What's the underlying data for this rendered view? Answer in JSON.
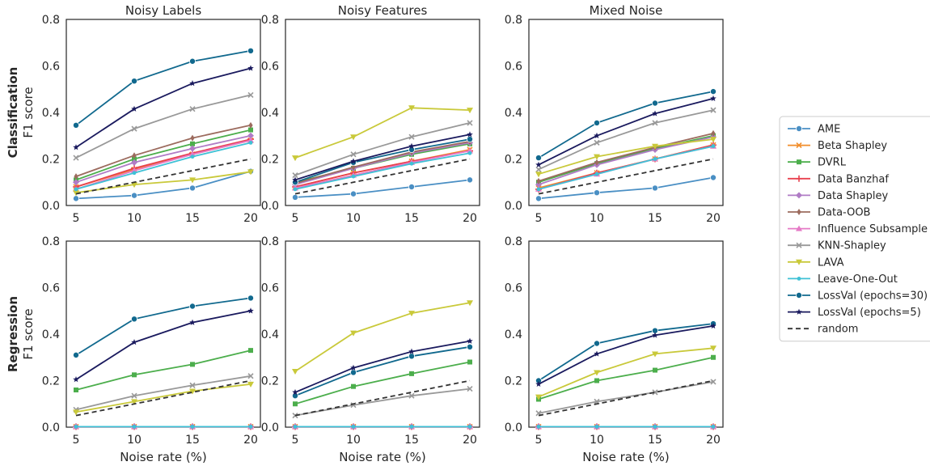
{
  "chart_data": {
    "type": "line",
    "x": [
      5,
      10,
      15,
      20
    ],
    "xlabel": "Noise rate (%)",
    "ylim": [
      0,
      0.8
    ],
    "yticks": [
      "0.0",
      "0.2",
      "0.4",
      "0.6",
      "0.8"
    ],
    "xticks": [
      "5",
      "10",
      "15",
      "20"
    ],
    "grid": false,
    "legend_position": "right",
    "column_titles": [
      "Noisy Labels",
      "Noisy Features",
      "Mixed Noise"
    ],
    "row_labels": [
      {
        "bold": "Classification",
        "metric": "F1 score"
      },
      {
        "bold": "Regression",
        "metric": "F1 score"
      }
    ],
    "legend": [
      {
        "name": "AME",
        "color": "#4a8fc4",
        "marker": "circle",
        "dash": ""
      },
      {
        "name": "Beta Shapley",
        "color": "#f28e2b",
        "marker": "x",
        "dash": ""
      },
      {
        "name": "DVRL",
        "color": "#4cae4c",
        "marker": "square",
        "dash": ""
      },
      {
        "name": "Data Banzhaf",
        "color": "#e8414f",
        "marker": "plus",
        "dash": ""
      },
      {
        "name": "Data Shapley",
        "color": "#b07cc6",
        "marker": "diamond",
        "dash": ""
      },
      {
        "name": "Data-OOB",
        "color": "#9c6b5e",
        "marker": "thin_diamond",
        "dash": ""
      },
      {
        "name": "Influence Subsample",
        "color": "#e57ac6",
        "marker": "triangle_up",
        "dash": ""
      },
      {
        "name": "KNN-Shapley",
        "color": "#999999",
        "marker": "x",
        "dash": ""
      },
      {
        "name": "LAVA",
        "color": "#c9c93a",
        "marker": "triangle_down",
        "dash": ""
      },
      {
        "name": "Leave-One-Out",
        "color": "#3fc1d6",
        "marker": "point",
        "dash": ""
      },
      {
        "name": "LossVal (epochs=30)",
        "color": "#11698e",
        "marker": "circle",
        "dash": ""
      },
      {
        "name": "LossVal (epochs=5)",
        "color": "#1a1a5e",
        "marker": "star",
        "dash": ""
      },
      {
        "name": "random",
        "color": "#333333",
        "marker": "none",
        "dash": "6,4"
      }
    ],
    "panels": [
      {
        "row": 0,
        "col": 0,
        "title": "Noisy Labels",
        "series": [
          {
            "name": "AME",
            "values": [
              0.03,
              0.043,
              0.075,
              0.147
            ]
          },
          {
            "name": "Beta Shapley",
            "values": [
              0.08,
              0.155,
              0.22,
              0.28
            ]
          },
          {
            "name": "DVRL",
            "values": [
              0.11,
              0.2,
              0.265,
              0.325
            ]
          },
          {
            "name": "Data Banzhaf",
            "values": [
              0.08,
              0.16,
              0.225,
              0.285
            ]
          },
          {
            "name": "Data Shapley",
            "values": [
              0.1,
              0.185,
              0.245,
              0.3
            ]
          },
          {
            "name": "Data-OOB",
            "values": [
              0.125,
              0.215,
              0.29,
              0.345
            ]
          },
          {
            "name": "Influence Subsample",
            "values": [
              0.07,
              0.15,
              0.22,
              0.28
            ]
          },
          {
            "name": "KNN-Shapley",
            "values": [
              0.205,
              0.33,
              0.415,
              0.475
            ]
          },
          {
            "name": "LAVA",
            "values": [
              0.055,
              0.09,
              0.11,
              0.145
            ]
          },
          {
            "name": "Leave-One-Out",
            "values": [
              0.07,
              0.14,
              0.21,
              0.27
            ]
          },
          {
            "name": "LossVal (epochs=30)",
            "values": [
              0.345,
              0.535,
              0.62,
              0.665
            ]
          },
          {
            "name": "LossVal (epochs=5)",
            "values": [
              0.25,
              0.415,
              0.525,
              0.59
            ]
          },
          {
            "name": "random",
            "values": [
              0.05,
              0.1,
              0.15,
              0.2
            ]
          }
        ]
      },
      {
        "row": 0,
        "col": 1,
        "title": "Noisy Features",
        "series": [
          {
            "name": "AME",
            "values": [
              0.035,
              0.05,
              0.08,
              0.11
            ]
          },
          {
            "name": "Beta Shapley",
            "values": [
              0.08,
              0.14,
              0.19,
              0.24
            ]
          },
          {
            "name": "DVRL",
            "values": [
              0.1,
              0.16,
              0.22,
              0.265
            ]
          },
          {
            "name": "Data Banzhaf",
            "values": [
              0.08,
              0.14,
              0.19,
              0.235
            ]
          },
          {
            "name": "Data Shapley",
            "values": [
              0.09,
              0.16,
              0.225,
              0.27
            ]
          },
          {
            "name": "Data-OOB",
            "values": [
              0.095,
              0.165,
              0.23,
              0.275
            ]
          },
          {
            "name": "Influence Subsample",
            "values": [
              0.075,
              0.13,
              0.185,
              0.235
            ]
          },
          {
            "name": "KNN-Shapley",
            "values": [
              0.13,
              0.22,
              0.295,
              0.355
            ]
          },
          {
            "name": "LAVA",
            "values": [
              0.205,
              0.295,
              0.42,
              0.41
            ]
          },
          {
            "name": "Leave-One-Out",
            "values": [
              0.07,
              0.125,
              0.18,
              0.225
            ]
          },
          {
            "name": "LossVal (epochs=30)",
            "values": [
              0.1,
              0.185,
              0.24,
              0.285
            ]
          },
          {
            "name": "LossVal (epochs=5)",
            "values": [
              0.11,
              0.19,
              0.255,
              0.305
            ]
          },
          {
            "name": "random",
            "values": [
              0.05,
              0.1,
              0.15,
              0.2
            ]
          }
        ]
      },
      {
        "row": 0,
        "col": 2,
        "title": "Mixed Noise",
        "series": [
          {
            "name": "AME",
            "values": [
              0.03,
              0.055,
              0.075,
              0.12
            ]
          },
          {
            "name": "Beta Shapley",
            "values": [
              0.075,
              0.14,
              0.2,
              0.26
            ]
          },
          {
            "name": "DVRL",
            "values": [
              0.1,
              0.18,
              0.245,
              0.3
            ]
          },
          {
            "name": "Data Banzhaf",
            "values": [
              0.07,
              0.14,
              0.2,
              0.26
            ]
          },
          {
            "name": "Data Shapley",
            "values": [
              0.09,
              0.175,
              0.24,
              0.295
            ]
          },
          {
            "name": "Data-OOB",
            "values": [
              0.105,
              0.185,
              0.25,
              0.31
            ]
          },
          {
            "name": "Influence Subsample",
            "values": [
              0.07,
              0.135,
              0.2,
              0.255
            ]
          },
          {
            "name": "KNN-Shapley",
            "values": [
              0.155,
              0.27,
              0.355,
              0.41
            ]
          },
          {
            "name": "LAVA",
            "values": [
              0.135,
              0.21,
              0.255,
              0.285
            ]
          },
          {
            "name": "Leave-One-Out",
            "values": [
              0.07,
              0.135,
              0.2,
              0.255
            ]
          },
          {
            "name": "LossVal (epochs=30)",
            "values": [
              0.205,
              0.355,
              0.44,
              0.49
            ]
          },
          {
            "name": "LossVal (epochs=5)",
            "values": [
              0.175,
              0.3,
              0.395,
              0.46
            ]
          },
          {
            "name": "random",
            "values": [
              0.05,
              0.1,
              0.15,
              0.2
            ]
          }
        ]
      },
      {
        "row": 1,
        "col": 0,
        "title": "",
        "series": [
          {
            "name": "AME",
            "values": [
              0.002,
              0.002,
              0.002,
              0.002
            ]
          },
          {
            "name": "Beta Shapley",
            "values": [
              0.002,
              0.002,
              0.002,
              0.002
            ]
          },
          {
            "name": "DVRL",
            "values": [
              0.16,
              0.225,
              0.27,
              0.33
            ]
          },
          {
            "name": "Data Banzhaf",
            "values": [
              0.002,
              0.002,
              0.002,
              0.002
            ]
          },
          {
            "name": "Data Shapley",
            "values": [
              0.002,
              0.002,
              0.002,
              0.002
            ]
          },
          {
            "name": "Data-OOB",
            "values": [
              0.002,
              0.002,
              0.002,
              0.002
            ]
          },
          {
            "name": "Influence Subsample",
            "values": [
              0.002,
              0.002,
              0.002,
              0.002
            ]
          },
          {
            "name": "KNN-Shapley",
            "values": [
              0.075,
              0.135,
              0.18,
              0.22
            ]
          },
          {
            "name": "LAVA",
            "values": [
              0.065,
              0.11,
              0.155,
              0.185
            ]
          },
          {
            "name": "Leave-One-Out",
            "values": [
              0.002,
              0.002,
              0.002,
              0.002
            ]
          },
          {
            "name": "LossVal (epochs=30)",
            "values": [
              0.31,
              0.465,
              0.52,
              0.555
            ]
          },
          {
            "name": "LossVal (epochs=5)",
            "values": [
              0.205,
              0.365,
              0.45,
              0.5
            ]
          },
          {
            "name": "random",
            "values": [
              0.05,
              0.1,
              0.15,
              0.2
            ]
          }
        ]
      },
      {
        "row": 1,
        "col": 1,
        "title": "",
        "series": [
          {
            "name": "AME",
            "values": [
              0.002,
              0.002,
              0.002,
              0.002
            ]
          },
          {
            "name": "Beta Shapley",
            "values": [
              0.002,
              0.002,
              0.002,
              0.002
            ]
          },
          {
            "name": "DVRL",
            "values": [
              0.1,
              0.175,
              0.23,
              0.28
            ]
          },
          {
            "name": "Data Banzhaf",
            "values": [
              0.002,
              0.002,
              0.002,
              0.002
            ]
          },
          {
            "name": "Data Shapley",
            "values": [
              0.002,
              0.002,
              0.002,
              0.002
            ]
          },
          {
            "name": "Data-OOB",
            "values": [
              0.002,
              0.002,
              0.002,
              0.002
            ]
          },
          {
            "name": "Influence Subsample",
            "values": [
              0.002,
              0.002,
              0.002,
              0.002
            ]
          },
          {
            "name": "KNN-Shapley",
            "values": [
              0.05,
              0.095,
              0.135,
              0.165
            ]
          },
          {
            "name": "LAVA",
            "values": [
              0.24,
              0.405,
              0.49,
              0.535
            ]
          },
          {
            "name": "Leave-One-Out",
            "values": [
              0.002,
              0.002,
              0.002,
              0.002
            ]
          },
          {
            "name": "LossVal (epochs=30)",
            "values": [
              0.135,
              0.235,
              0.305,
              0.345
            ]
          },
          {
            "name": "LossVal (epochs=5)",
            "values": [
              0.15,
              0.255,
              0.325,
              0.37
            ]
          },
          {
            "name": "random",
            "values": [
              0.05,
              0.1,
              0.15,
              0.2
            ]
          }
        ]
      },
      {
        "row": 1,
        "col": 2,
        "title": "",
        "series": [
          {
            "name": "AME",
            "values": [
              0.002,
              0.002,
              0.002,
              0.002
            ]
          },
          {
            "name": "Beta Shapley",
            "values": [
              0.002,
              0.002,
              0.002,
              0.002
            ]
          },
          {
            "name": "DVRL",
            "values": [
              0.12,
              0.2,
              0.245,
              0.3
            ]
          },
          {
            "name": "Data Banzhaf",
            "values": [
              0.002,
              0.002,
              0.002,
              0.002
            ]
          },
          {
            "name": "Data Shapley",
            "values": [
              0.002,
              0.002,
              0.002,
              0.002
            ]
          },
          {
            "name": "Data-OOB",
            "values": [
              0.002,
              0.002,
              0.002,
              0.002
            ]
          },
          {
            "name": "Influence Subsample",
            "values": [
              0.002,
              0.002,
              0.002,
              0.002
            ]
          },
          {
            "name": "KNN-Shapley",
            "values": [
              0.06,
              0.11,
              0.15,
              0.195
            ]
          },
          {
            "name": "LAVA",
            "values": [
              0.13,
              0.235,
              0.315,
              0.34
            ]
          },
          {
            "name": "Leave-One-Out",
            "values": [
              0.002,
              0.002,
              0.002,
              0.002
            ]
          },
          {
            "name": "LossVal (epochs=30)",
            "values": [
              0.2,
              0.36,
              0.415,
              0.445
            ]
          },
          {
            "name": "LossVal (epochs=5)",
            "values": [
              0.185,
              0.315,
              0.395,
              0.435
            ]
          },
          {
            "name": "random",
            "values": [
              0.05,
              0.1,
              0.15,
              0.2
            ]
          }
        ]
      }
    ]
  }
}
